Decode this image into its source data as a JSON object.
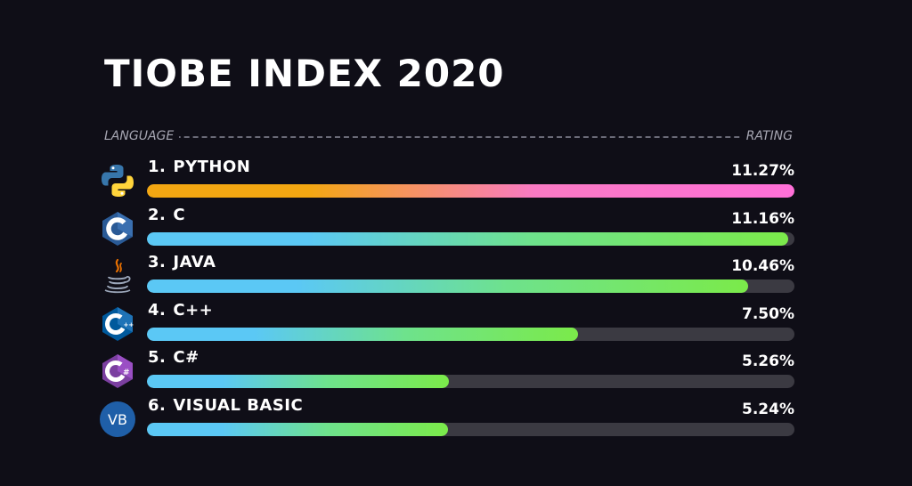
{
  "chart_data": {
    "type": "bar",
    "title": "TIOBE INDEX 2020",
    "column_headers": {
      "left": "LANGUAGE",
      "right": "RATING"
    },
    "max_value": 11.27,
    "rows": [
      {
        "rank": "1.",
        "name": "PYTHON",
        "value": 11.27,
        "value_label": "11.27%",
        "icon": "python-icon",
        "gradient": [
          "#f3a712",
          "#f97ac4",
          "#ff6fd8"
        ]
      },
      {
        "rank": "2.",
        "name": "C",
        "value": 11.16,
        "value_label": "11.16%",
        "icon": "c-icon",
        "gradient": [
          "#5bc8f5",
          "#6ee28c",
          "#7bea4a"
        ]
      },
      {
        "rank": "3.",
        "name": "JAVA",
        "value": 10.46,
        "value_label": "10.46%",
        "icon": "java-icon",
        "gradient": [
          "#5bc8f5",
          "#6ee28c",
          "#7bea4a"
        ]
      },
      {
        "rank": "4.",
        "name": "C++",
        "value": 7.5,
        "value_label": "7.50%",
        "icon": "cpp-icon",
        "gradient": [
          "#5bc8f5",
          "#6ee28c",
          "#7bea4a"
        ]
      },
      {
        "rank": "5.",
        "name": "C#",
        "value": 5.26,
        "value_label": "5.26%",
        "icon": "csharp-icon",
        "gradient": [
          "#5bc8f5",
          "#6ee28c",
          "#7bea4a"
        ]
      },
      {
        "rank": "6.",
        "name": "VISUAL BASIC",
        "value": 5.24,
        "value_label": "5.24%",
        "icon": "visual-basic-icon",
        "gradient": [
          "#5bc8f5",
          "#6ee28c",
          "#7bea4a"
        ]
      }
    ]
  },
  "icons": {
    "vb_text": "VB"
  },
  "colors": {
    "background": "#0f0e17",
    "track": "#3b3a42",
    "python_blue": "#3776ab",
    "python_yellow": "#ffd43b",
    "c_blue": "#2a5a96",
    "cpp_blue": "#00599c",
    "csharp_purple": "#7b3fa0",
    "vb_blue": "#1f5fa8"
  }
}
